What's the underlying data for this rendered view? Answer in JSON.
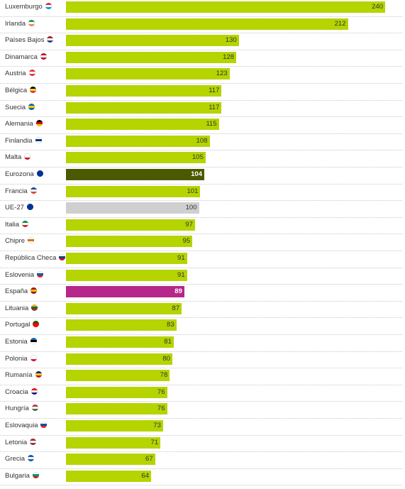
{
  "chart_data": {
    "type": "bar",
    "orientation": "horizontal",
    "xlim": [
      0,
      240
    ],
    "categories": [
      "Luxemburgo",
      "Irlanda",
      "Países Bajos",
      "Dinamarca",
      "Austria",
      "Bélgica",
      "Suecia",
      "Alemania",
      "Finlandia",
      "Malta",
      "Eurozona",
      "Francia",
      "UE-27",
      "Italia",
      "Chipre",
      "República Checa",
      "Eslovenia",
      "España",
      "Lituania",
      "Portugal",
      "Estonia",
      "Polonia",
      "Rumanía",
      "Croacia",
      "Hungría",
      "Eslovaquia",
      "Letonia",
      "Grecia",
      "Bulgaria"
    ],
    "values": [
      240,
      212,
      130,
      128,
      123,
      117,
      117,
      115,
      108,
      105,
      104,
      101,
      100,
      97,
      95,
      91,
      91,
      89,
      87,
      83,
      81,
      80,
      78,
      76,
      76,
      73,
      71,
      67,
      64
    ],
    "bar_colors": {
      "default": "#b5d400",
      "Eurozona": "#4b5a00",
      "UE-27": "#cfcfcf",
      "España": "#b7268a"
    },
    "highlighted": [
      "Eurozona",
      "España"
    ],
    "flag_icons": [
      "luxembourg-flag-icon",
      "ireland-flag-icon",
      "netherlands-flag-icon",
      "denmark-flag-icon",
      "austria-flag-icon",
      "belgium-flag-icon",
      "sweden-flag-icon",
      "germany-flag-icon",
      "finland-flag-icon",
      "malta-flag-icon",
      "eurozone-flag-icon",
      "france-flag-icon",
      "eu27-flag-icon",
      "italy-flag-icon",
      "cyprus-flag-icon",
      "czechia-flag-icon",
      "slovenia-flag-icon",
      "spain-flag-icon",
      "lithuania-flag-icon",
      "portugal-flag-icon",
      "estonia-flag-icon",
      "poland-flag-icon",
      "romania-flag-icon",
      "croatia-flag-icon",
      "hungary-flag-icon",
      "slovakia-flag-icon",
      "latvia-flag-icon",
      "greece-flag-icon",
      "bulgaria-flag-icon"
    ],
    "flag_colors": [
      [
        "#ed2939",
        "#ffffff",
        "#00a1de"
      ],
      [
        "#169b62",
        "#ffffff",
        "#ff883e"
      ],
      [
        "#ae1c28",
        "#ffffff",
        "#21468b"
      ],
      [
        "#c8102e",
        "#ffffff",
        "#c8102e"
      ],
      [
        "#ef3340",
        "#ffffff",
        "#ef3340"
      ],
      [
        "#000000",
        "#fdda24",
        "#ef3340"
      ],
      [
        "#006aa7",
        "#fecc00",
        "#006aa7"
      ],
      [
        "#000000",
        "#dd0000",
        "#ffce00"
      ],
      [
        "#ffffff",
        "#003580",
        "#ffffff"
      ],
      [
        "#ffffff",
        "#ffffff",
        "#cf142b"
      ],
      [
        "#003399",
        "#003399",
        "#003399"
      ],
      [
        "#0055a4",
        "#ffffff",
        "#ef4135"
      ],
      [
        "#003399",
        "#003399",
        "#003399"
      ],
      [
        "#009246",
        "#ffffff",
        "#ce2b37"
      ],
      [
        "#ffffff",
        "#d57800",
        "#ffffff"
      ],
      [
        "#ffffff",
        "#11457e",
        "#d7141a"
      ],
      [
        "#ffffff",
        "#005da4",
        "#ed1c24"
      ],
      [
        "#aa151b",
        "#f1bf00",
        "#aa151b"
      ],
      [
        "#fdb913",
        "#006a44",
        "#c1272d"
      ],
      [
        "#006600",
        "#ff0000",
        "#ff0000"
      ],
      [
        "#0072ce",
        "#000000",
        "#ffffff"
      ],
      [
        "#ffffff",
        "#ffffff",
        "#dc143c"
      ],
      [
        "#002b7f",
        "#fcd116",
        "#ce1126"
      ],
      [
        "#ff0000",
        "#ffffff",
        "#171796"
      ],
      [
        "#cd2a3e",
        "#ffffff",
        "#436f4d"
      ],
      [
        "#ffffff",
        "#0b4ea2",
        "#ee1c25"
      ],
      [
        "#9e3039",
        "#ffffff",
        "#9e3039"
      ],
      [
        "#0d5eaf",
        "#ffffff",
        "#0d5eaf"
      ],
      [
        "#ffffff",
        "#00966e",
        "#d62612"
      ]
    ]
  }
}
